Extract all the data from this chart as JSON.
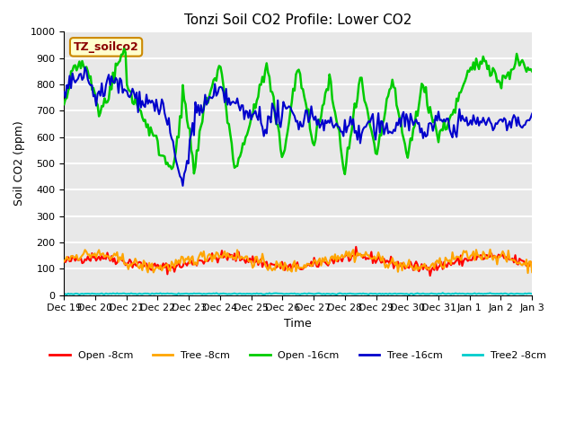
{
  "title": "Tonzi Soil CO2 Profile: Lower CO2",
  "xlabel": "Time",
  "ylabel": "Soil CO2 (ppm)",
  "annotation": "TZ_soilco2",
  "ylim": [
    0,
    1000
  ],
  "background_color": "#e8e8e8",
  "grid_color": "white",
  "series": {
    "open_8cm": {
      "color": "#ff0000",
      "label": "Open -8cm",
      "lw": 1.5
    },
    "tree_8cm": {
      "color": "#ffa500",
      "label": "Tree -8cm",
      "lw": 1.5
    },
    "open_16cm": {
      "color": "#00cc00",
      "label": "Open -16cm",
      "lw": 1.8
    },
    "tree_16cm": {
      "color": "#0000cc",
      "label": "Tree -16cm",
      "lw": 1.5
    },
    "tree2_8cm": {
      "color": "#00cccc",
      "label": "Tree2 -8cm",
      "lw": 1.5
    }
  },
  "xtick_labels": [
    "Dec 19",
    "Dec 20",
    "Dec 21",
    "Dec 22",
    "Dec 23",
    "Dec 24",
    "Dec 25",
    "Dec 26",
    "Dec 27",
    "Dec 28",
    "Dec 29",
    "Dec 30",
    "Dec 31",
    "Jan 1",
    "Jan 2",
    "Jan 3"
  ],
  "xtick_positions": [
    0,
    1,
    2,
    3,
    4,
    5,
    6,
    7,
    8,
    9,
    10,
    11,
    12,
    13,
    14,
    15
  ],
  "n_points": 336
}
